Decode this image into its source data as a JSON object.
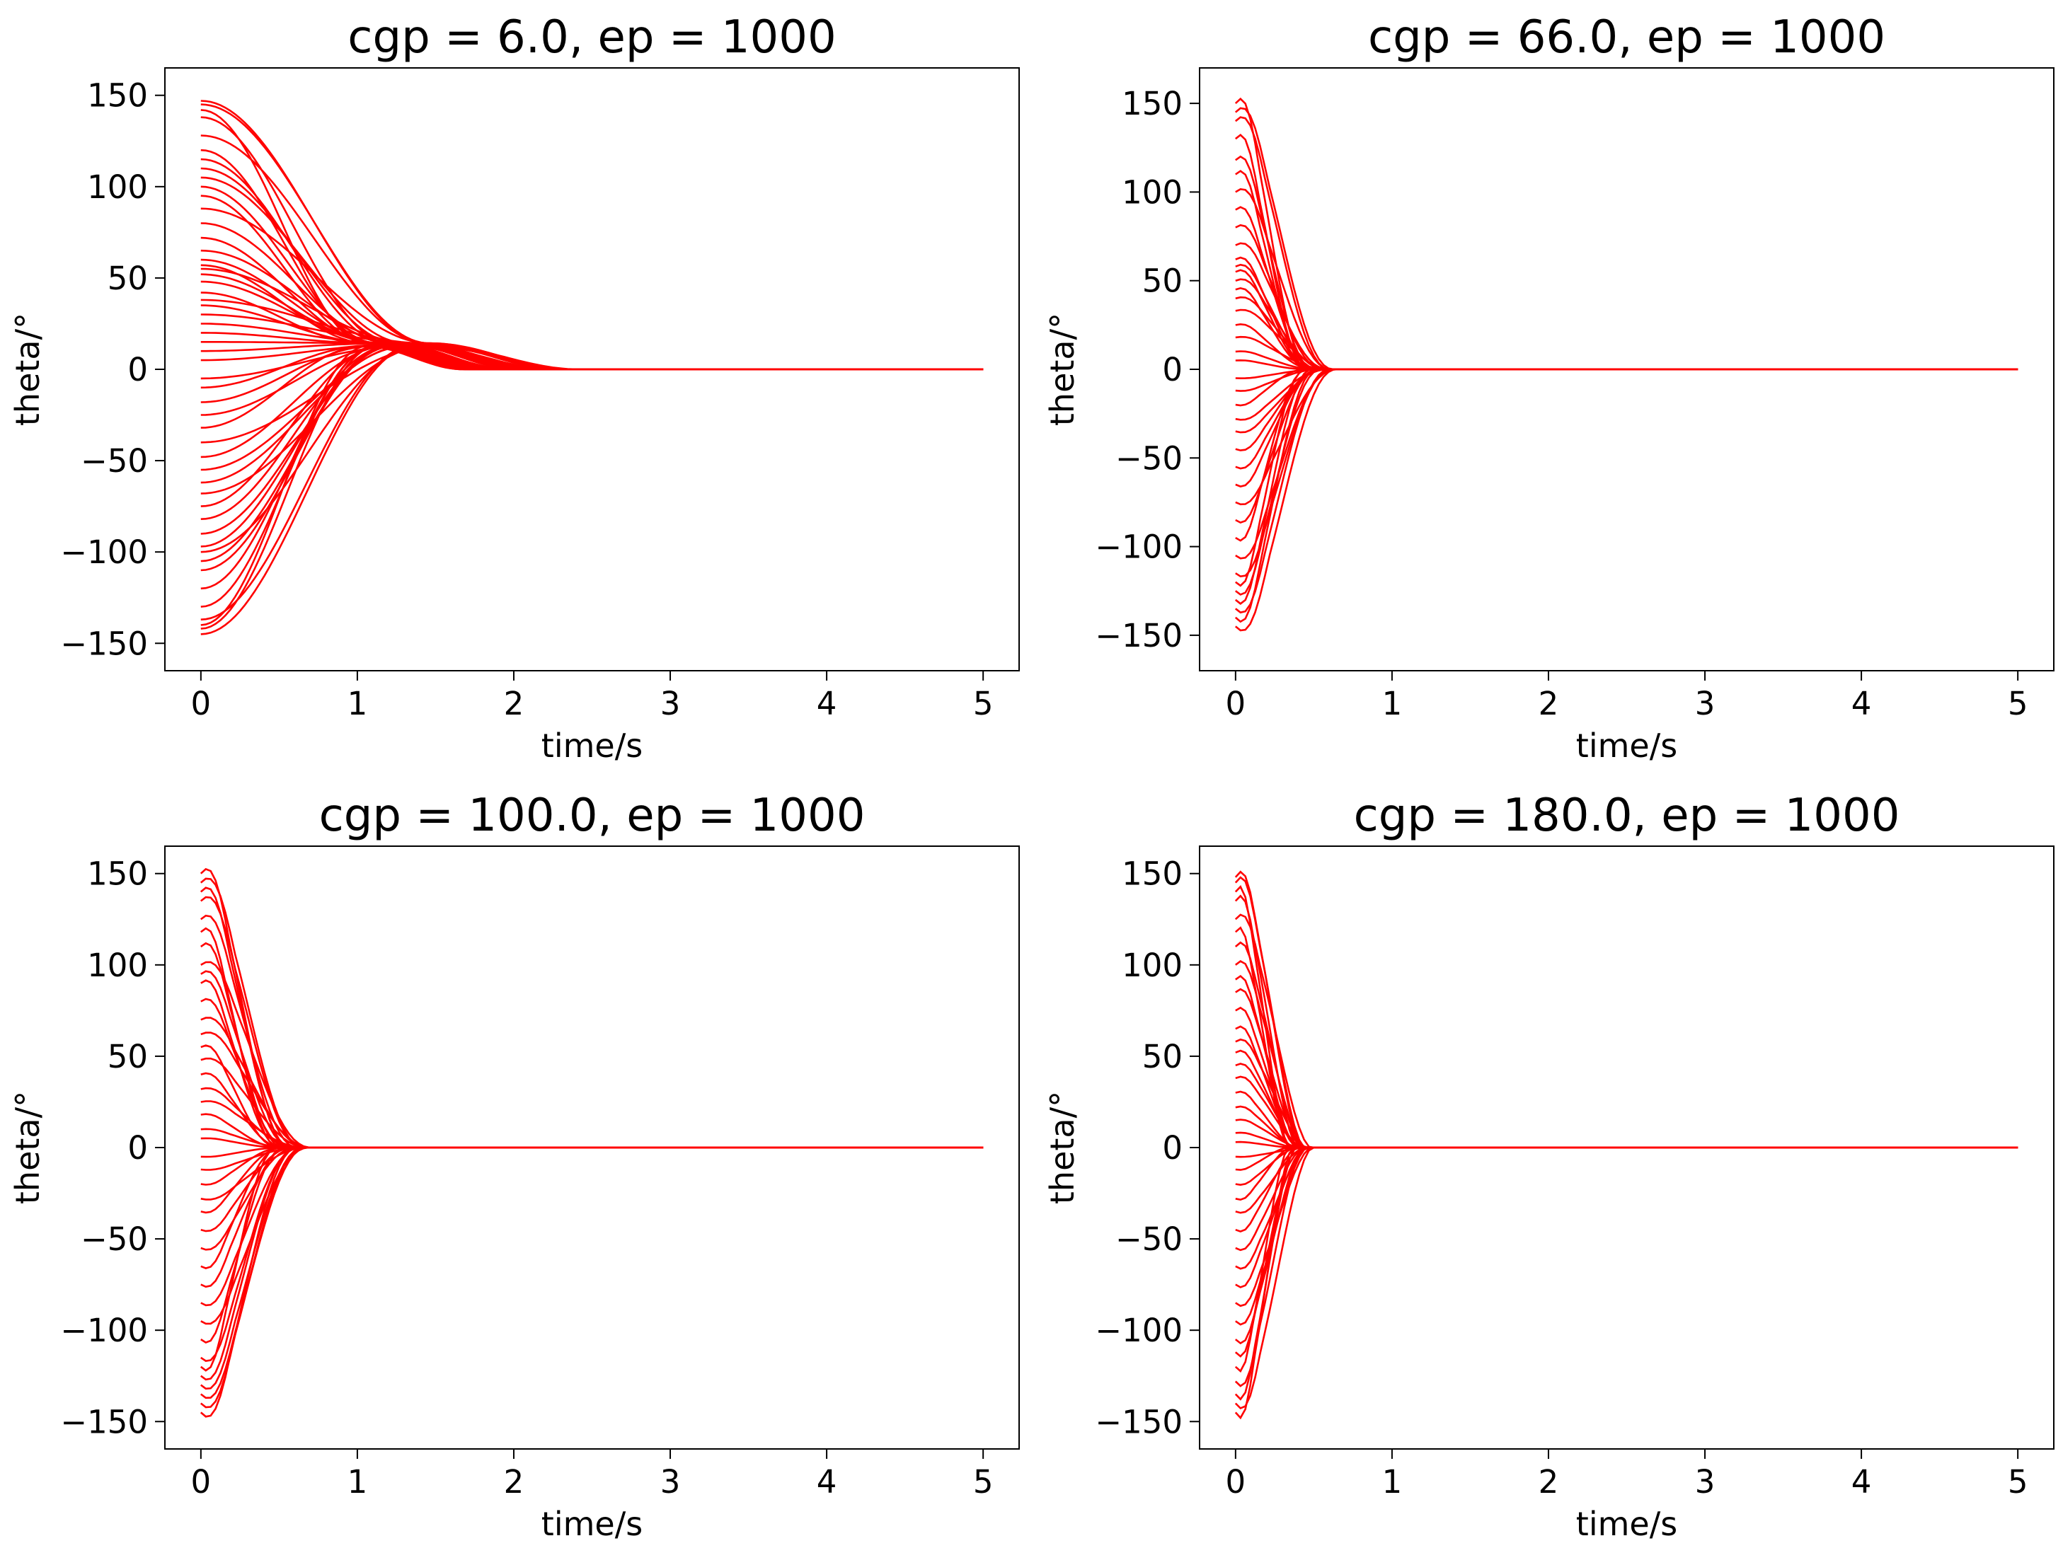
{
  "chart_data": [
    {
      "type": "line",
      "title": "cgp = 6.0, ep = 1000",
      "xlabel": "time/s",
      "ylabel": "theta/°",
      "xlim": [
        -0.23,
        5.23
      ],
      "ylim": [
        -165,
        165
      ],
      "xticks": [
        0,
        1,
        2,
        3,
        4,
        5
      ],
      "xtick_labels": [
        "0",
        "1",
        "2",
        "3",
        "4",
        "5"
      ],
      "yticks": [
        150,
        100,
        50,
        0,
        -50,
        -100,
        -150
      ],
      "ytick_labels": [
        "150",
        "100",
        "50",
        "0",
        "−50",
        "−100",
        "−150"
      ],
      "color": "#ff0000",
      "grid": false,
      "legend": "none",
      "settle_time_s": 2.2,
      "overshoot_deg": 15,
      "series_initial_values_deg": [
        147,
        145,
        142,
        138,
        128,
        120,
        115,
        110,
        105,
        100,
        95,
        88,
        80,
        72,
        65,
        60,
        57,
        55,
        52,
        48,
        42,
        38,
        35,
        30,
        25,
        20,
        15,
        10,
        5,
        -5,
        -10,
        -18,
        -25,
        -32,
        -40,
        -48,
        -55,
        -62,
        -68,
        -75,
        -82,
        -90,
        -97,
        -100,
        -105,
        -110,
        -120,
        -130,
        -137,
        -140,
        -142,
        -145
      ],
      "x_end": 5
    },
    {
      "type": "line",
      "title": "cgp = 66.0, ep = 1000",
      "xlabel": "time/s",
      "ylabel": "theta/°",
      "xlim": [
        -0.23,
        5.23
      ],
      "ylim": [
        -170,
        170
      ],
      "xticks": [
        0,
        1,
        2,
        3,
        4,
        5
      ],
      "xtick_labels": [
        "0",
        "1",
        "2",
        "3",
        "4",
        "5"
      ],
      "yticks": [
        150,
        100,
        50,
        0,
        -50,
        -100,
        -150
      ],
      "ytick_labels": [
        "150",
        "100",
        "50",
        "0",
        "−50",
        "−100",
        "−150"
      ],
      "color": "#ff0000",
      "grid": false,
      "legend": "none",
      "settle_time_s": 0.6,
      "overshoot_deg": 0,
      "series_initial_values_deg": [
        150,
        145,
        140,
        130,
        118,
        110,
        100,
        90,
        80,
        70,
        62,
        58,
        55,
        50,
        45,
        40,
        33,
        25,
        18,
        10,
        5,
        -5,
        -12,
        -20,
        -28,
        -35,
        -45,
        -55,
        -65,
        -75,
        -85,
        -95,
        -105,
        -115,
        -120,
        -125,
        -130,
        -135,
        -140,
        -145
      ],
      "x_end": 5
    },
    {
      "type": "line",
      "title": "cgp = 100.0, ep = 1000",
      "xlabel": "time/s",
      "ylabel": "theta/°",
      "xlim": [
        -0.23,
        5.23
      ],
      "ylim": [
        -165,
        165
      ],
      "xticks": [
        0,
        1,
        2,
        3,
        4,
        5
      ],
      "xtick_labels": [
        "0",
        "1",
        "2",
        "3",
        "4",
        "5"
      ],
      "yticks": [
        150,
        100,
        50,
        0,
        -50,
        -100,
        -150
      ],
      "ytick_labels": [
        "150",
        "100",
        "50",
        "0",
        "−50",
        "−100",
        "−150"
      ],
      "color": "#ff0000",
      "grid": false,
      "legend": "none",
      "settle_time_s": 0.65,
      "overshoot_deg": 0,
      "series_initial_values_deg": [
        150,
        145,
        140,
        135,
        125,
        118,
        110,
        100,
        95,
        90,
        80,
        70,
        62,
        55,
        48,
        40,
        32,
        25,
        18,
        10,
        5,
        -5,
        -12,
        -20,
        -28,
        -35,
        -45,
        -55,
        -65,
        -75,
        -85,
        -95,
        -105,
        -115,
        -120,
        -125,
        -130,
        -135,
        -140,
        -145
      ],
      "x_end": 5
    },
    {
      "type": "line",
      "title": "cgp = 180.0, ep = 1000",
      "xlabel": "time/s",
      "ylabel": "theta/°",
      "xlim": [
        -0.23,
        5.23
      ],
      "ylim": [
        -165,
        165
      ],
      "xticks": [
        0,
        1,
        2,
        3,
        4,
        5
      ],
      "xtick_labels": [
        "0",
        "1",
        "2",
        "3",
        "4",
        "5"
      ],
      "yticks": [
        150,
        100,
        50,
        0,
        -50,
        -100,
        -150
      ],
      "ytick_labels": [
        "150",
        "100",
        "50",
        "0",
        "−50",
        "−100",
        "−150"
      ],
      "color": "#ff0000",
      "grid": false,
      "legend": "none",
      "settle_time_s": 0.45,
      "overshoot_deg": 0,
      "series_initial_values_deg": [
        148,
        145,
        140,
        135,
        125,
        118,
        110,
        100,
        92,
        85,
        75,
        65,
        58,
        52,
        45,
        38,
        30,
        22,
        15,
        8,
        3,
        -5,
        -12,
        -20,
        -28,
        -35,
        -45,
        -55,
        -65,
        -75,
        -85,
        -95,
        -105,
        -112,
        -120,
        -128,
        -135,
        -140,
        -145
      ],
      "x_end": 5
    }
  ]
}
